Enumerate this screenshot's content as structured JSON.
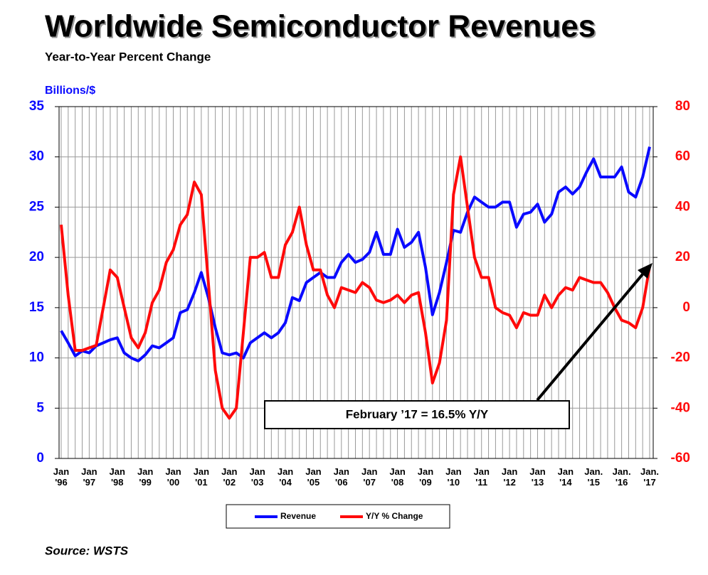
{
  "chart_data": {
    "type": "line",
    "title": "Worldwide Semiconductor Revenues",
    "subtitle": "Year-to-Year Percent Change",
    "y_label": "Billions/$",
    "annotation": "February ’17 = 16.5% Y/Y",
    "source": "Source: WSTS",
    "x": [
      "Jan '96",
      null,
      null,
      null,
      "Jan '97",
      null,
      null,
      null,
      "Jan '98",
      null,
      null,
      null,
      "Jan '99",
      null,
      null,
      null,
      "Jan '00",
      null,
      null,
      null,
      "Jan '01",
      null,
      null,
      null,
      "Jan '02",
      null,
      null,
      null,
      "Jan '03",
      null,
      null,
      null,
      "Jan '04",
      null,
      null,
      null,
      "Jan '05",
      null,
      null,
      null,
      "Jan '06",
      null,
      null,
      null,
      "Jan '07",
      null,
      null,
      null,
      "Jan '08",
      null,
      null,
      null,
      "Jan '09",
      null,
      null,
      null,
      "Jan '10",
      null,
      null,
      null,
      "Jan '11",
      null,
      null,
      null,
      "Jan '12",
      null,
      null,
      null,
      "Jan '13",
      null,
      null,
      null,
      "Jan '14",
      null,
      null,
      null,
      "Jan. '15",
      null,
      null,
      null,
      "Jan. '16",
      null,
      null,
      null,
      "Jan. '17"
    ],
    "series": [
      {
        "name": "Revenue",
        "color": "#0a0aff",
        "values": [
          12.7,
          11.5,
          10.2,
          10.7,
          10.5,
          11.2,
          11.5,
          11.8,
          12.0,
          10.5,
          10.0,
          9.7,
          10.3,
          11.2,
          11.0,
          11.5,
          12.0,
          14.5,
          14.8,
          16.5,
          18.5,
          16.0,
          13.0,
          10.5,
          10.3,
          10.5,
          10.0,
          11.5,
          12.0,
          12.5,
          12.0,
          12.5,
          13.5,
          16.0,
          15.7,
          17.5,
          18.0,
          18.5,
          18.0,
          18.0,
          19.5,
          20.3,
          19.5,
          19.8,
          20.5,
          22.5,
          20.3,
          20.3,
          22.8,
          21.0,
          21.5,
          22.5,
          19.0,
          14.3,
          16.5,
          19.5,
          22.7,
          22.5,
          24.5,
          26.0,
          25.5,
          25.0,
          25.0,
          25.5,
          25.5,
          23.0,
          24.3,
          24.5,
          25.3,
          23.5,
          24.3,
          26.5,
          27.0,
          26.3,
          27.0,
          28.5,
          29.8,
          28.0,
          28.0,
          28.0,
          29.0,
          26.5,
          26.0,
          28.0,
          31.0
        ]
      },
      {
        "name": "Y/Y % Change",
        "color": "#ff0a0a",
        "axis": "y2",
        "values": [
          33,
          5,
          -17,
          -17,
          -16,
          -15,
          0,
          15,
          12,
          0,
          -12,
          -16,
          -10,
          2,
          7,
          18,
          23,
          33,
          37,
          50,
          45,
          10,
          -25,
          -40,
          -44,
          -40,
          -10,
          20,
          20,
          22,
          12,
          12,
          25,
          30,
          40,
          25,
          15,
          15,
          5,
          0,
          8,
          7,
          6,
          10,
          8,
          3,
          2,
          3,
          5,
          2,
          5,
          6,
          -10,
          -30,
          -22,
          -5,
          45,
          60,
          40,
          20,
          12,
          12,
          0,
          -2,
          -3,
          -8,
          -2,
          -3,
          -3,
          5,
          0,
          5,
          8,
          7,
          12,
          11,
          10,
          10,
          6,
          0,
          -5,
          -6,
          -8,
          0,
          16.5
        ]
      }
    ],
    "ylim": [
      0,
      35
    ],
    "yticks": [
      0,
      5,
      10,
      15,
      20,
      25,
      30,
      35
    ],
    "y2lim": [
      -60,
      80
    ],
    "y2ticks": [
      -60,
      -40,
      -20,
      0,
      20,
      40,
      60,
      80
    ],
    "grid": true
  }
}
